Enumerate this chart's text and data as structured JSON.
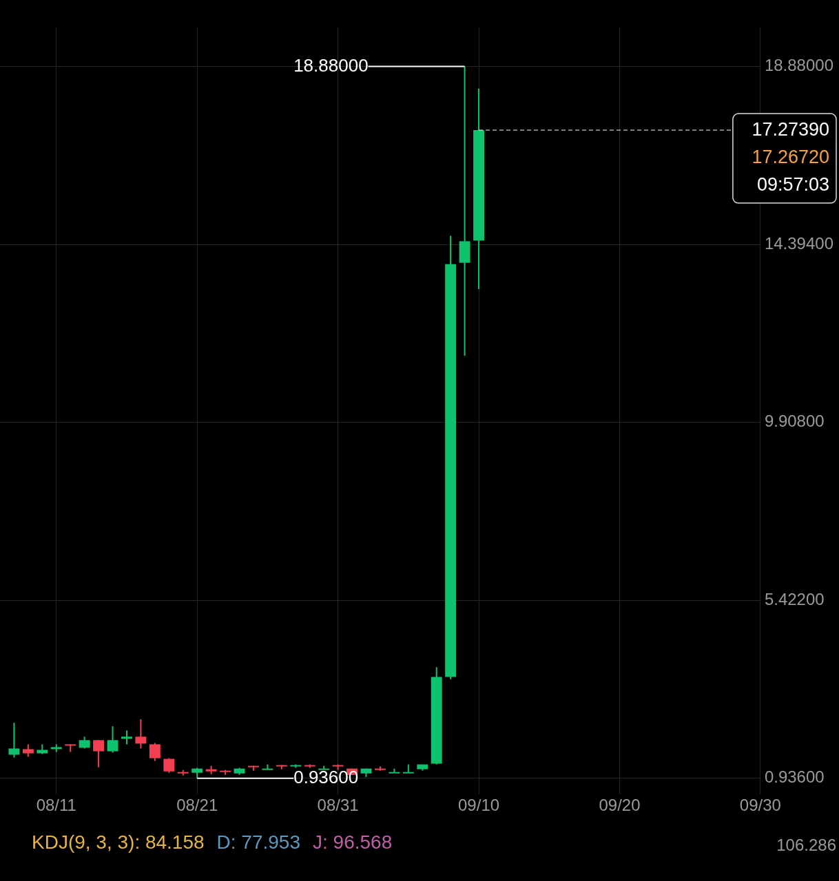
{
  "chart_data": {
    "type": "candlestick",
    "x": [
      "--08-08",
      "--08-09",
      "--08-10",
      "--08-11",
      "--08-12",
      "--08-13",
      "--08-14",
      "--08-15",
      "--08-16",
      "--08-17",
      "--08-18",
      "--08-19",
      "--08-20",
      "--08-21",
      "--08-22",
      "--08-23",
      "--08-24",
      "--08-25",
      "--08-26",
      "--08-27",
      "--08-28",
      "--08-29",
      "--08-30",
      "--08-31",
      "--09-01",
      "--09-02",
      "--09-03",
      "--09-04",
      "--09-05",
      "--09-06",
      "--09-07",
      "--09-08",
      "--09-09",
      "--09-10"
    ],
    "ohlc": [
      [
        1.531,
        2.335,
        1.461,
        1.688
      ],
      [
        1.671,
        1.793,
        1.479,
        1.566
      ],
      [
        1.566,
        1.793,
        1.548,
        1.653
      ],
      [
        1.671,
        1.793,
        1.601,
        1.723
      ],
      [
        1.793,
        1.793,
        1.601,
        1.758
      ],
      [
        1.706,
        1.986,
        1.688,
        1.898
      ],
      [
        1.898,
        1.898,
        1.216,
        1.618
      ],
      [
        1.618,
        2.248,
        1.583,
        1.898
      ],
      [
        1.933,
        2.143,
        1.793,
        1.986
      ],
      [
        1.986,
        2.423,
        1.688,
        1.811
      ],
      [
        1.793,
        1.828,
        1.374,
        1.443
      ],
      [
        1.426,
        1.443,
        1.076,
        1.111
      ],
      [
        1.094,
        1.146,
        1.006,
        1.076
      ],
      [
        1.076,
        1.199,
        0.936,
        1.181
      ],
      [
        1.164,
        1.251,
        1.041,
        1.111
      ],
      [
        1.129,
        1.146,
        1.024,
        1.111
      ],
      [
        1.059,
        1.199,
        1.024,
        1.181
      ],
      [
        1.251,
        1.251,
        1.129,
        1.234
      ],
      [
        1.164,
        1.286,
        1.164,
        1.181
      ],
      [
        1.269,
        1.269,
        1.164,
        1.234
      ],
      [
        1.234,
        1.286,
        1.199,
        1.269
      ],
      [
        1.269,
        1.286,
        1.199,
        1.234
      ],
      [
        1.164,
        1.251,
        1.164,
        1.181
      ],
      [
        1.269,
        1.286,
        1.146,
        1.234
      ],
      [
        1.181,
        1.181,
        1.024,
        1.024
      ],
      [
        1.059,
        1.181,
        0.971,
        1.181
      ],
      [
        1.181,
        1.234,
        1.129,
        1.164
      ],
      [
        1.076,
        1.181,
        1.076,
        1.094
      ],
      [
        1.076,
        1.286,
        1.076,
        1.094
      ],
      [
        1.164,
        1.286,
        1.129,
        1.286
      ],
      [
        1.304,
        3.735,
        1.286,
        3.49
      ],
      [
        3.49,
        14.613,
        3.437,
        13.896
      ],
      [
        13.931,
        18.88,
        11.587,
        14.473
      ],
      [
        14.49,
        18.32,
        13.266,
        17.2739
      ]
    ],
    "colors": [
      "#0fc26e",
      "#f23f52",
      "#0fc26e",
      "#0fc26e",
      "#f23f52",
      "#0fc26e",
      "#f23f52",
      "#0fc26e",
      "#0fc26e",
      "#f23f52",
      "#f23f52",
      "#f23f52",
      "#f23f52",
      "#0fc26e",
      "#f23f52",
      "#f23f52",
      "#0fc26e",
      "#f23f52",
      "#0fc26e",
      "#f23f52",
      "#0fc26e",
      "#f23f52",
      "#0fc26e",
      "#f23f52",
      "#f23f52",
      "#0fc26e",
      "#f23f52",
      "#0fc26e",
      "#0fc26e",
      "#0fc26e",
      "#0fc26e",
      "#0fc26e",
      "#0fc26e",
      "#0fc26e"
    ],
    "xlim": [
      "--08-07",
      "--09-30"
    ],
    "xticks": [
      {
        "value": "--08-11",
        "label": "08/11"
      },
      {
        "value": "--08-21",
        "label": "08/21"
      },
      {
        "value": "--08-31",
        "label": "08/31"
      },
      {
        "value": "--09-10",
        "label": "09/10"
      },
      {
        "value": "--09-20",
        "label": "09/20"
      },
      {
        "value": "--09-30",
        "label": "09/30"
      }
    ],
    "ylim": [
      0.53,
      19.86
    ],
    "yticks": [
      {
        "value": 0.936,
        "label": "0.93600"
      },
      {
        "value": 5.422,
        "label": "5.42200"
      },
      {
        "value": 9.908,
        "label": "9.90800"
      },
      {
        "value": 14.394,
        "label": "14.39400"
      },
      {
        "value": 18.88,
        "label": "18.88000"
      }
    ],
    "grid": true,
    "ref_lines": [
      {
        "axis": "y",
        "value": 17.2739,
        "label": "17.27390",
        "color": "#ffffff",
        "line_style": "dashed"
      }
    ],
    "annotations": [
      {
        "text": "18.88000",
        "x": "--09-09",
        "y": 18.88
      },
      {
        "text": "0.93600",
        "x": "--08-21",
        "y": 0.936
      },
      "17.26720",
      "09:57:03",
      "KDJ(9, 3, 3): 84.158",
      "D: 77.953",
      "J: 96.568",
      "106.286"
    ]
  }
}
